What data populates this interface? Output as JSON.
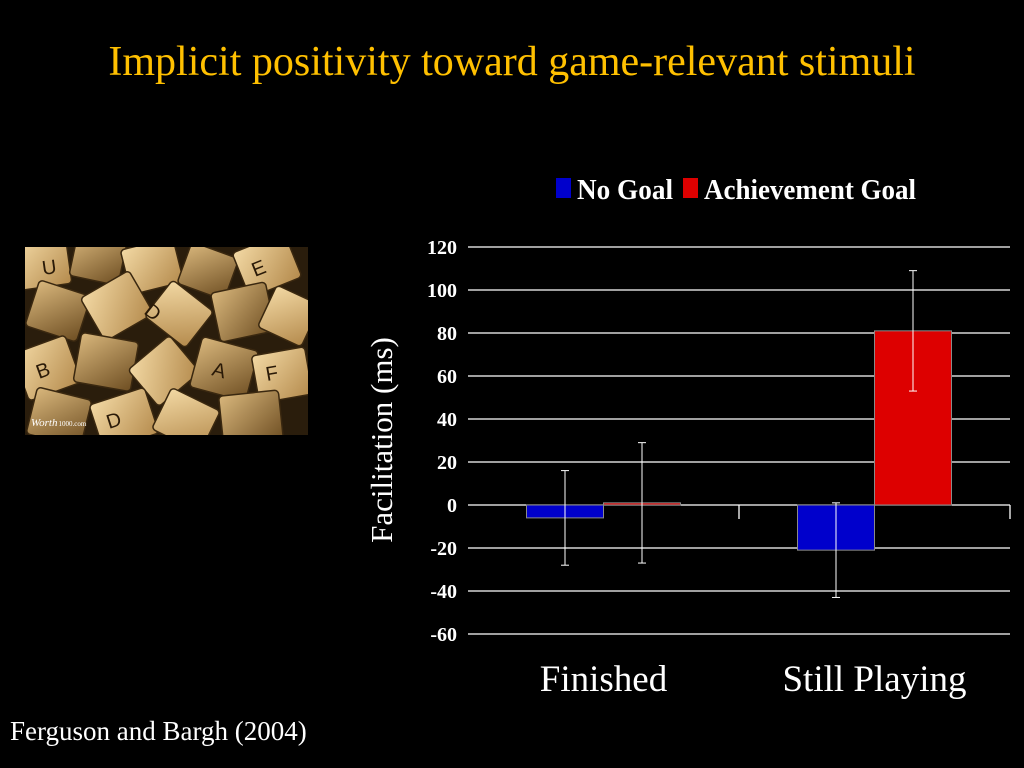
{
  "slide": {
    "title": "Implicit positivity toward game-relevant stimuli",
    "citation": "Ferguson and Bargh (2004)",
    "photo_watermark": "Worth",
    "photo_watermark_suffix": "1000.com"
  },
  "chart_data": {
    "type": "bar",
    "title": "",
    "xlabel": "",
    "ylabel": "Facilitation (ms)",
    "ylim": [
      -60,
      120
    ],
    "yticks": [
      120,
      100,
      80,
      60,
      40,
      20,
      0,
      -20,
      -40,
      -60
    ],
    "grid": true,
    "legend_position": "top",
    "categories": [
      "Finished",
      "Still Playing"
    ],
    "series": [
      {
        "name": "No Goal",
        "color": "#0000CC",
        "values": [
          -6,
          -21
        ],
        "error": [
          22,
          22
        ]
      },
      {
        "name": "Achievement Goal",
        "color": "#DD0000",
        "values": [
          1,
          81
        ],
        "error": [
          28,
          28
        ]
      }
    ]
  }
}
